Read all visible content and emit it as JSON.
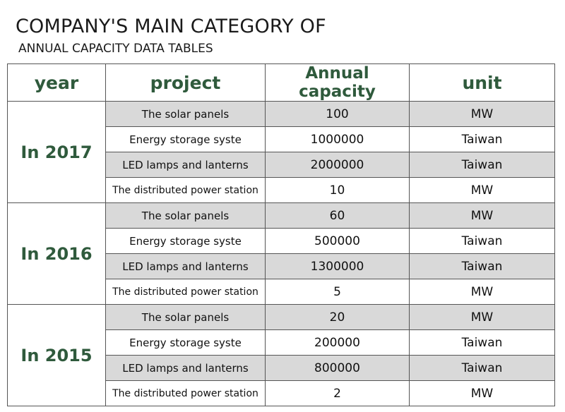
{
  "title": "COMPANY'S MAIN CATEGORY OF",
  "subtitle": "ANNUAL CAPACITY DATA TABLES",
  "headers": {
    "year": "year",
    "project": "project",
    "capacity": "Annual capacity",
    "unit": "unit"
  },
  "groups": [
    {
      "year": "In 2017",
      "rows": [
        {
          "project": "The solar panels",
          "capacity": "100",
          "unit": "MW"
        },
        {
          "project": "Energy storage syste",
          "capacity": "1000000",
          "unit": "Taiwan"
        },
        {
          "project": "LED lamps and lanterns",
          "capacity": "2000000",
          "unit": "Taiwan"
        },
        {
          "project": "The distributed power station",
          "capacity": "10",
          "unit": "MW"
        }
      ]
    },
    {
      "year": "In 2016",
      "rows": [
        {
          "project": "The solar panels",
          "capacity": "60",
          "unit": "MW"
        },
        {
          "project": "Energy storage syste",
          "capacity": "500000",
          "unit": "Taiwan"
        },
        {
          "project": "LED lamps and lanterns",
          "capacity": "1300000",
          "unit": "Taiwan"
        },
        {
          "project": "The distributed power station",
          "capacity": "5",
          "unit": "MW"
        }
      ]
    },
    {
      "year": "In 2015",
      "rows": [
        {
          "project": "The solar panels",
          "capacity": "20",
          "unit": "MW"
        },
        {
          "project": "Energy storage syste",
          "capacity": "200000",
          "unit": "Taiwan"
        },
        {
          "project": "LED lamps and lanterns",
          "capacity": "800000",
          "unit": "Taiwan"
        },
        {
          "project": "The distributed power station",
          "capacity": "2",
          "unit": "MW"
        }
      ]
    }
  ],
  "colors": {
    "header_text": "#2f5a3c",
    "shaded_row": "#d9d9d9",
    "border": "#555555"
  }
}
